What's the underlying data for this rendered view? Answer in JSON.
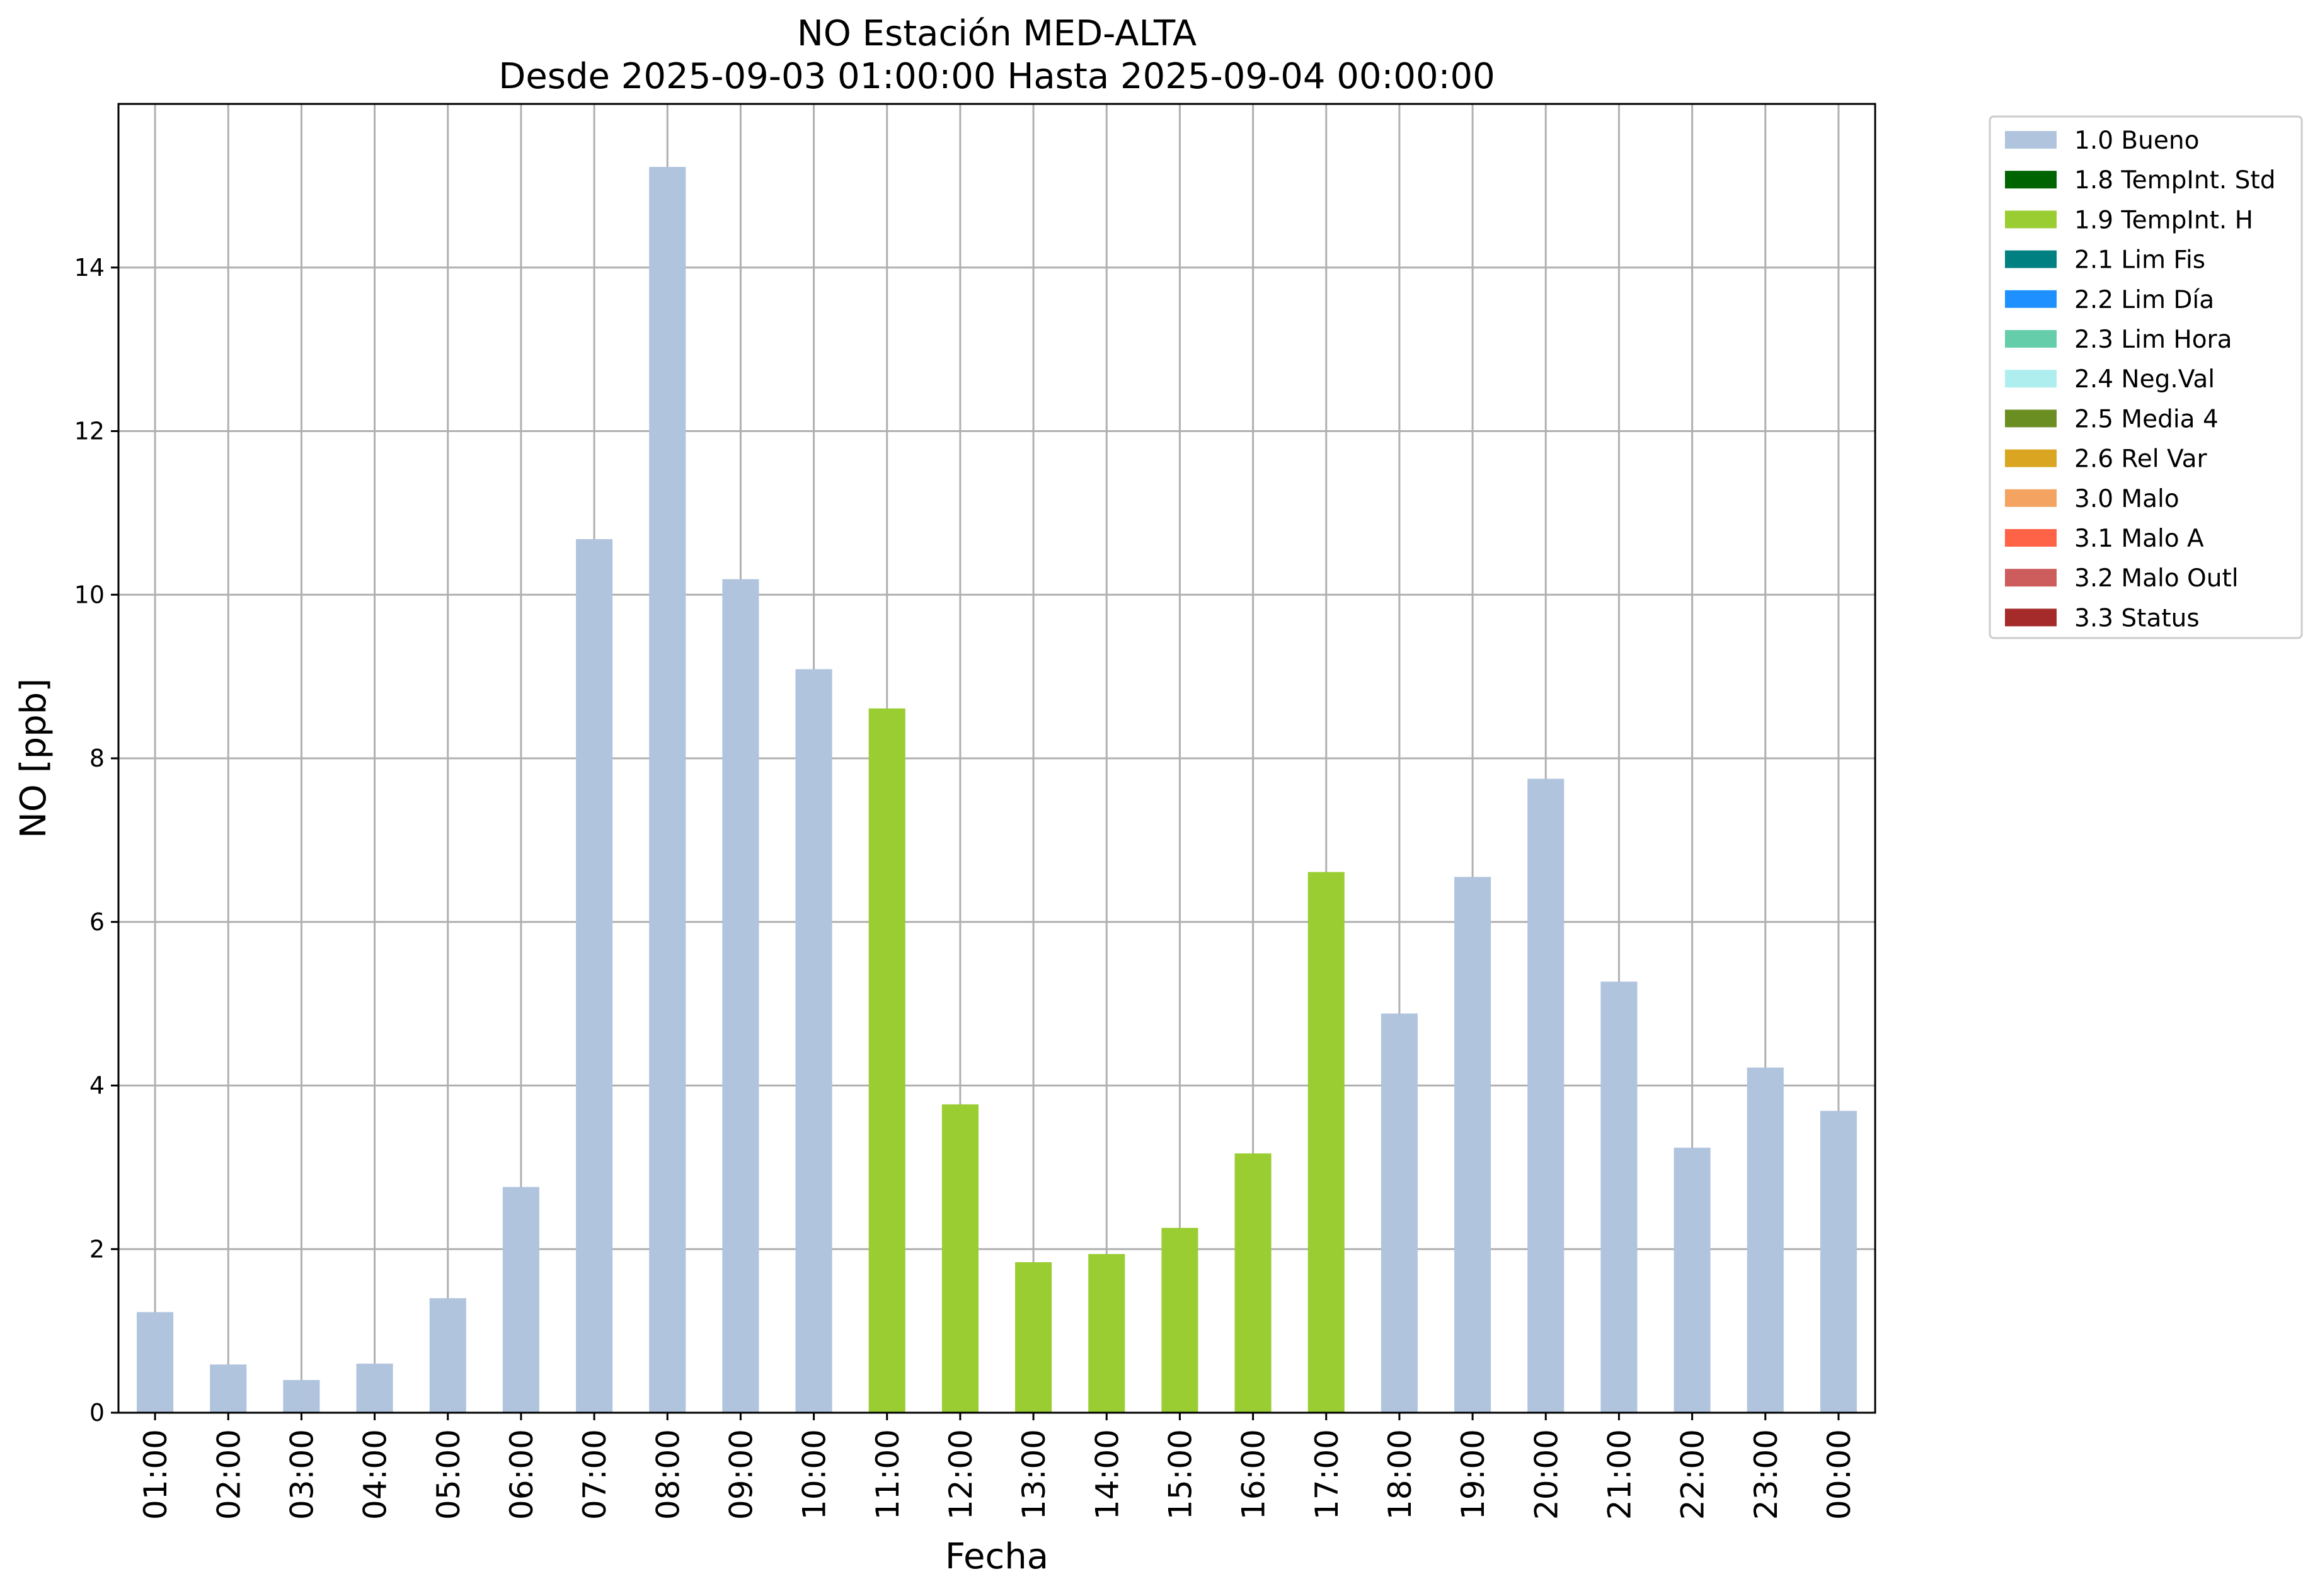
{
  "chart_data": {
    "type": "bar",
    "title": [
      "NO Estación MED-ALTA",
      "Desde 2025-09-03 01:00:00 Hasta 2025-09-04 00:00:00"
    ],
    "xlabel": "Fecha",
    "ylabel": "NO [ppb]",
    "ylim": [
      0,
      16
    ],
    "yticks": [
      0,
      2,
      4,
      6,
      8,
      10,
      12,
      14
    ],
    "grid": true,
    "legend_position": "outside-top-right",
    "categories": [
      "01:00",
      "02:00",
      "03:00",
      "04:00",
      "05:00",
      "06:00",
      "07:00",
      "08:00",
      "09:00",
      "10:00",
      "11:00",
      "12:00",
      "13:00",
      "14:00",
      "15:00",
      "16:00",
      "17:00",
      "18:00",
      "19:00",
      "20:00",
      "21:00",
      "22:00",
      "23:00",
      "00:00"
    ],
    "values": [
      1.23,
      0.59,
      0.4,
      0.6,
      1.4,
      2.76,
      10.68,
      15.23,
      10.19,
      9.09,
      8.61,
      3.77,
      1.84,
      1.94,
      2.26,
      3.17,
      6.61,
      4.88,
      6.55,
      7.75,
      5.27,
      3.24,
      4.22,
      3.69
    ],
    "flags": [
      "1.0 Bueno",
      "1.0 Bueno",
      "1.0 Bueno",
      "1.0 Bueno",
      "1.0 Bueno",
      "1.0 Bueno",
      "1.0 Bueno",
      "1.0 Bueno",
      "1.0 Bueno",
      "1.0 Bueno",
      "1.9 TempInt. H",
      "1.9 TempInt. H",
      "1.9 TempInt. H",
      "1.9 TempInt. H",
      "1.9 TempInt. H",
      "1.9 TempInt. H",
      "1.9 TempInt. H",
      "1.0 Bueno",
      "1.0 Bueno",
      "1.0 Bueno",
      "1.0 Bueno",
      "1.0 Bueno",
      "1.0 Bueno",
      "1.0 Bueno"
    ],
    "legend": [
      {
        "label": "1.0 Bueno",
        "color": "#b0c4de"
      },
      {
        "label": "1.8 TempInt. Std",
        "color": "#006400"
      },
      {
        "label": "1.9 TempInt. H",
        "color": "#9acd32"
      },
      {
        "label": "2.1 Lim Fis",
        "color": "#008080"
      },
      {
        "label": "2.2 Lim Día",
        "color": "#1e90ff"
      },
      {
        "label": "2.3 Lim Hora",
        "color": "#66cdaa"
      },
      {
        "label": "2.4 Neg.Val",
        "color": "#afeeee"
      },
      {
        "label": "2.5 Media 4",
        "color": "#6b8e23"
      },
      {
        "label": "2.6 Rel Var",
        "color": "#daa520"
      },
      {
        "label": "3.0 Malo",
        "color": "#f4a460"
      },
      {
        "label": "3.1 Malo A",
        "color": "#ff6347"
      },
      {
        "label": "3.2 Malo Outl",
        "color": "#cd5c5c"
      },
      {
        "label": "3.3 Status",
        "color": "#a52a2a"
      }
    ]
  }
}
